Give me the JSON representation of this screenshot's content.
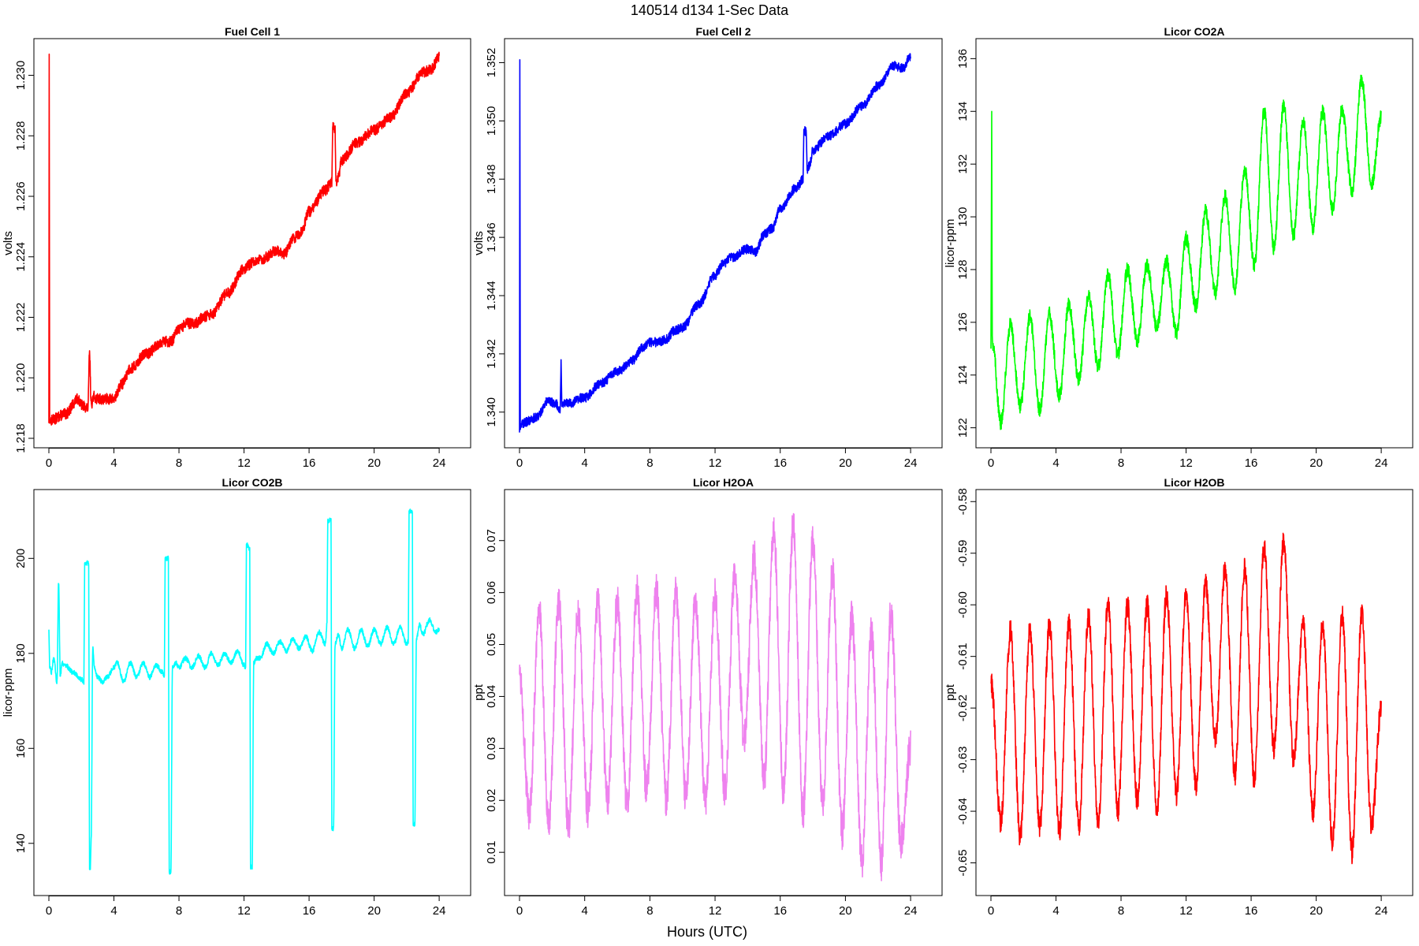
{
  "figure": {
    "title": "140514   d134   1-Sec Data",
    "xlabel": "Hours (UTC)"
  },
  "chart_data": [
    {
      "type": "line",
      "title": "Fuel Cell 1",
      "ylabel": "volts",
      "color": "#ff0000",
      "xlim": [
        0,
        24
      ],
      "ylim": [
        1.218,
        1.2309
      ],
      "xticks": [
        "0",
        "4",
        "8",
        "12",
        "16",
        "20",
        "24"
      ],
      "yticks": [
        "1.218",
        "1.220",
        "1.222",
        "1.224",
        "1.226",
        "1.228",
        "1.230"
      ],
      "noise": 0.00018,
      "series": [
        {
          "x": [
            0,
            0.02,
            0.05,
            0.1,
            1,
            1.8,
            2,
            2.4,
            2.5,
            2.6,
            2.65,
            2.7,
            3,
            4,
            4.5,
            5,
            6,
            7,
            7.5,
            8,
            8.5,
            9,
            9.5,
            10,
            11,
            12,
            12.5,
            13,
            14,
            14.5,
            15,
            15.5,
            16,
            17,
            17.4,
            17.45,
            17.6,
            17.65,
            17.8,
            18,
            19,
            20,
            21,
            22,
            23,
            23.5,
            24
          ],
          "y": [
            1.2185,
            1.2307,
            1.2185,
            1.2186,
            1.2188,
            1.2193,
            1.2191,
            1.219,
            1.2208,
            1.2192,
            1.219,
            1.2194,
            1.2193,
            1.2193,
            1.2198,
            1.2203,
            1.2208,
            1.2212,
            1.2212,
            1.2216,
            1.2218,
            1.2218,
            1.222,
            1.2221,
            1.2228,
            1.2236,
            1.2238,
            1.2239,
            1.2242,
            1.2241,
            1.2246,
            1.2248,
            1.2255,
            1.2262,
            1.2265,
            1.2283,
            1.2282,
            1.2265,
            1.2266,
            1.2272,
            1.2278,
            1.2282,
            1.2286,
            1.2294,
            1.2301,
            1.2302,
            1.2306
          ]
        }
      ]
    },
    {
      "type": "line",
      "title": "Fuel Cell 2",
      "ylabel": "volts",
      "color": "#0000ff",
      "xlim": [
        0,
        24
      ],
      "ylim": [
        1.3391,
        1.3525
      ],
      "xticks": [
        "0",
        "4",
        "8",
        "12",
        "16",
        "20",
        "24"
      ],
      "yticks": [
        "1.340",
        "1.342",
        "1.344",
        "1.346",
        "1.348",
        "1.350",
        "1.352"
      ],
      "noise": 0.00016,
      "series": [
        {
          "x": [
            0,
            0.02,
            0.05,
            0.1,
            1,
            1.8,
            2.2,
            2.5,
            2.55,
            2.6,
            2.65,
            2.8,
            3,
            4,
            5,
            6,
            7,
            7.5,
            8,
            8.5,
            9,
            9.5,
            10,
            11,
            12,
            12.5,
            13,
            14,
            14.5,
            15,
            15.5,
            16,
            17,
            17.4,
            17.45,
            17.6,
            17.65,
            17.8,
            18,
            19,
            20,
            21,
            22,
            23,
            23.5,
            24
          ],
          "y": [
            1.3393,
            1.3521,
            1.3394,
            1.3396,
            1.3398,
            1.3404,
            1.3403,
            1.3401,
            1.3418,
            1.3402,
            1.3403,
            1.3403,
            1.3403,
            1.3405,
            1.341,
            1.3414,
            1.3418,
            1.3422,
            1.3424,
            1.3424,
            1.3425,
            1.3428,
            1.3429,
            1.3437,
            1.3447,
            1.3451,
            1.3453,
            1.3456,
            1.3455,
            1.3461,
            1.3463,
            1.347,
            1.3477,
            1.348,
            1.3497,
            1.3496,
            1.3483,
            1.3485,
            1.349,
            1.3495,
            1.3499,
            1.3505,
            1.3512,
            1.3519,
            1.3518,
            1.3522
          ]
        }
      ]
    },
    {
      "type": "line",
      "title": "Licor CO2A",
      "ylabel": "licor-ppm",
      "color": "#00ff00",
      "xlim": [
        0,
        24
      ],
      "ylim": [
        121.6,
        136.4
      ],
      "xticks": [
        "0",
        "4",
        "8",
        "12",
        "16",
        "20",
        "24"
      ],
      "yticks": [
        "122",
        "124",
        "126",
        "128",
        "130",
        "132",
        "134",
        "136"
      ],
      "noise": 0.28,
      "series": [
        {
          "x": [
            0,
            0.05,
            0.08,
            0.1,
            0.6,
            1.2,
            1.8,
            2.4,
            3,
            3.6,
            4.2,
            4.8,
            5.4,
            6,
            6.6,
            7.2,
            7.8,
            8.4,
            9,
            9.6,
            10.2,
            10.8,
            11.4,
            12,
            12.6,
            13.2,
            13.8,
            14.4,
            15,
            15.6,
            16.2,
            16.8,
            17.4,
            18,
            18.6,
            19.2,
            19.8,
            20.4,
            21,
            21.6,
            22.2,
            22.8,
            23.4,
            24
          ],
          "y": [
            125,
            134,
            125.5,
            125.2,
            122.2,
            125.9,
            122.8,
            126.2,
            122.7,
            126.3,
            123.2,
            126.7,
            123.8,
            127,
            124.3,
            127.8,
            124.8,
            128,
            125.3,
            128.2,
            125.8,
            128.3,
            125.6,
            129.2,
            126.6,
            130.2,
            127.1,
            130.8,
            127.3,
            131.8,
            128.2,
            134,
            128.8,
            134.2,
            129.3,
            133.6,
            129.6,
            134,
            130.3,
            134.1,
            131,
            135.2,
            131.2,
            133.8
          ]
        }
      ]
    },
    {
      "type": "line",
      "title": "Licor CO2B",
      "ylabel": "licor-ppm",
      "color": "#00ffff",
      "xlim": [
        0,
        24
      ],
      "ylim": [
        131,
        212.5
      ],
      "xticks": [
        "0",
        "4",
        "8",
        "12",
        "16",
        "20",
        "24"
      ],
      "yticks": [
        "140",
        "160",
        "180",
        "200"
      ],
      "noise": 0.5,
      "series": [
        {
          "x": [
            0,
            0.05,
            0.15,
            0.3,
            0.5,
            0.6,
            0.7,
            0.8,
            1,
            1.5,
            2,
            2.15,
            2.2,
            2.45,
            2.5,
            2.55,
            2.6,
            2.7,
            2.8,
            3,
            3.3,
            3.6,
            4,
            4.2,
            4.6,
            5,
            5.4,
            5.8,
            6.2,
            6.6,
            7,
            7.1,
            7.15,
            7.35,
            7.4,
            7.5,
            7.6,
            7.8,
            8,
            8.4,
            8.8,
            9.2,
            9.6,
            10,
            10.4,
            10.8,
            11.2,
            11.6,
            12,
            12.1,
            12.15,
            12.35,
            12.4,
            12.5,
            12.6,
            12.8,
            13,
            13.4,
            13.8,
            14.2,
            14.6,
            15,
            15.4,
            15.8,
            16.2,
            16.6,
            17,
            17.1,
            17.15,
            17.35,
            17.4,
            17.5,
            17.6,
            17.8,
            18,
            18.4,
            18.8,
            19.2,
            19.6,
            20,
            20.4,
            20.8,
            21.2,
            21.6,
            22,
            22.1,
            22.15,
            22.35,
            22.4,
            22.5,
            22.6,
            22.8,
            23,
            23.4,
            23.8,
            24
          ],
          "y": [
            185,
            177,
            176,
            179,
            174,
            195,
            175,
            178,
            177.5,
            176,
            174.5,
            174,
            199,
            199,
            134.5,
            134.5,
            141,
            181,
            177,
            175,
            174,
            175,
            177,
            178,
            174,
            178,
            175,
            178,
            175,
            177.5,
            176,
            175,
            200,
            200,
            134,
            134,
            177,
            178,
            177,
            179,
            177,
            179.5,
            177,
            180,
            177.5,
            180,
            178,
            180.5,
            177.5,
            177,
            203,
            202,
            135,
            135,
            178,
            179,
            179,
            182,
            180,
            182.5,
            180.5,
            183,
            181,
            183.5,
            180.5,
            184.5,
            182,
            186,
            208,
            208,
            143,
            143,
            182,
            184,
            181,
            185,
            181,
            185,
            181.5,
            185,
            182,
            185.5,
            182,
            185.5,
            182,
            182.5,
            210,
            210,
            144,
            144,
            183,
            186,
            184,
            187,
            184.5,
            185
          ]
        }
      ]
    },
    {
      "type": "line",
      "title": "Licor H2OA",
      "ylabel": "ppt",
      "color": "#ee82ee",
      "xlim": [
        0,
        24
      ],
      "ylim": [
        0.0035,
        0.078
      ],
      "xticks": [
        "0",
        "4",
        "8",
        "12",
        "16",
        "20",
        "24"
      ],
      "yticks": [
        "0.01",
        "0.02",
        "0.03",
        "0.04",
        "0.05",
        "0.06",
        "0.07"
      ],
      "noise": 0.0035,
      "series": [
        {
          "x": [
            0,
            0.6,
            1.2,
            1.8,
            2.4,
            3,
            3.6,
            4.2,
            4.8,
            5.4,
            6,
            6.6,
            7.2,
            7.8,
            8.4,
            9,
            9.6,
            10.2,
            10.8,
            11.4,
            12,
            12.6,
            13.2,
            13.8,
            14.4,
            15,
            15.6,
            16.2,
            16.8,
            17.4,
            18,
            18.6,
            19.2,
            19.8,
            20.4,
            21,
            21.6,
            22.2,
            22.8,
            23.4,
            24
          ],
          "y": [
            0.045,
            0.017,
            0.057,
            0.015,
            0.058,
            0.015,
            0.056,
            0.018,
            0.058,
            0.02,
            0.058,
            0.019,
            0.06,
            0.022,
            0.06,
            0.02,
            0.06,
            0.021,
            0.058,
            0.02,
            0.06,
            0.022,
            0.063,
            0.032,
            0.067,
            0.024,
            0.072,
            0.022,
            0.073,
            0.018,
            0.07,
            0.02,
            0.064,
            0.014,
            0.055,
            0.008,
            0.052,
            0.008,
            0.056,
            0.012,
            0.03
          ]
        }
      ]
    },
    {
      "type": "line",
      "title": "Licor H2OB",
      "ylabel": "ppt",
      "color": "#ff0000",
      "xlim": [
        0,
        24
      ],
      "ylim": [
        -0.6545,
        -0.5795
      ],
      "xticks": [
        "0",
        "4",
        "8",
        "12",
        "16",
        "20",
        "24"
      ],
      "yticks": [
        "-0.65",
        "-0.64",
        "-0.63",
        "-0.62",
        "-0.61",
        "-0.60",
        "-0.59",
        "-0.58"
      ],
      "noise": 0.0022,
      "series": [
        {
          "x": [
            0,
            0.6,
            1.2,
            1.8,
            2.4,
            3,
            3.6,
            4.2,
            4.8,
            5.4,
            6,
            6.6,
            7.2,
            7.8,
            8.4,
            9,
            9.6,
            10.2,
            10.8,
            11.4,
            12,
            12.6,
            13.2,
            13.8,
            14.4,
            15,
            15.6,
            16.2,
            16.8,
            17.4,
            18,
            18.6,
            19.2,
            19.8,
            20.4,
            21,
            21.6,
            22.2,
            22.8,
            23.4,
            24
          ],
          "y": [
            -0.615,
            -0.642,
            -0.605,
            -0.645,
            -0.605,
            -0.643,
            -0.604,
            -0.644,
            -0.604,
            -0.643,
            -0.602,
            -0.642,
            -0.6,
            -0.64,
            -0.6,
            -0.638,
            -0.6,
            -0.64,
            -0.598,
            -0.637,
            -0.598,
            -0.635,
            -0.596,
            -0.626,
            -0.593,
            -0.633,
            -0.593,
            -0.634,
            -0.589,
            -0.628,
            -0.588,
            -0.63,
            -0.604,
            -0.64,
            -0.604,
            -0.646,
            -0.602,
            -0.648,
            -0.602,
            -0.643,
            -0.62
          ]
        }
      ]
    }
  ]
}
